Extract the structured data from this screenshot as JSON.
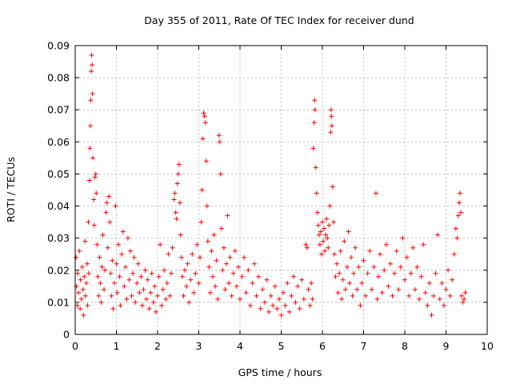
{
  "chart_data": {
    "type": "scatter",
    "title": "Day 355 of 2011, Rate Of TEC Index for receiver dund",
    "xlabel": "GPS time / hours",
    "ylabel": "ROTI / TECUs",
    "xlim": [
      0,
      10
    ],
    "ylim": [
      0,
      0.09
    ],
    "x_ticks": [
      0,
      1,
      2,
      3,
      4,
      5,
      6,
      7,
      8,
      9,
      10
    ],
    "y_ticks": [
      0,
      0.01,
      0.02,
      0.03,
      0.04,
      0.05,
      0.06,
      0.07,
      0.08,
      0.09
    ],
    "x_tick_labels": [
      "0",
      "1",
      "2",
      "3",
      "4",
      "5",
      "6",
      "7",
      "8",
      "9",
      "10"
    ],
    "y_tick_labels": [
      "0",
      "0.01",
      "0.02",
      "0.03",
      "0.04",
      "0.05",
      "0.06",
      "0.07",
      "0.08",
      "0.09"
    ],
    "grid": true,
    "marker": "plus",
    "color": "#ff0000",
    "series": [
      {
        "points": [
          [
            0.02,
            0.024
          ],
          [
            0.03,
            0.015
          ],
          [
            0.05,
            0.009
          ],
          [
            0.06,
            0.019
          ],
          [
            0.08,
            0.013
          ],
          [
            0.1,
            0.026
          ],
          [
            0.12,
            0.008
          ],
          [
            0.13,
            0.017
          ],
          [
            0.15,
            0.011
          ],
          [
            0.17,
            0.021
          ],
          [
            0.19,
            0.014
          ],
          [
            0.2,
            0.006
          ],
          [
            0.22,
            0.018
          ],
          [
            0.24,
            0.029
          ],
          [
            0.25,
            0.012
          ],
          [
            0.27,
            0.016
          ],
          [
            0.29,
            0.022
          ],
          [
            0.3,
            0.009
          ],
          [
            0.32,
            0.035
          ],
          [
            0.33,
            0.019
          ],
          [
            0.35,
            0.048
          ],
          [
            0.36,
            0.058
          ],
          [
            0.37,
            0.065
          ],
          [
            0.38,
            0.073
          ],
          [
            0.39,
            0.082
          ],
          [
            0.4,
            0.087
          ],
          [
            0.41,
            0.084
          ],
          [
            0.42,
            0.075
          ],
          [
            0.43,
            0.055
          ],
          [
            0.45,
            0.042
          ],
          [
            0.46,
            0.034
          ],
          [
            0.48,
            0.049
          ],
          [
            0.5,
            0.05
          ],
          [
            0.51,
            0.044
          ],
          [
            0.53,
            0.028
          ],
          [
            0.55,
            0.018
          ],
          [
            0.57,
            0.012
          ],
          [
            0.59,
            0.024
          ],
          [
            0.61,
            0.016
          ],
          [
            0.63,
            0.01
          ],
          [
            0.65,
            0.021
          ],
          [
            0.67,
            0.031
          ],
          [
            0.7,
            0.014
          ],
          [
            0.72,
            0.02
          ],
          [
            0.75,
            0.038
          ],
          [
            0.77,
            0.041
          ],
          [
            0.79,
            0.027
          ],
          [
            0.82,
            0.043
          ],
          [
            0.84,
            0.035
          ],
          [
            0.86,
            0.019
          ],
          [
            0.88,
            0.012
          ],
          [
            0.9,
            0.023
          ],
          [
            0.92,
            0.008
          ],
          [
            0.95,
            0.016
          ],
          [
            0.98,
            0.04
          ],
          [
            1.0,
            0.022
          ],
          [
            1.02,
            0.013
          ],
          [
            1.05,
            0.028
          ],
          [
            1.08,
            0.018
          ],
          [
            1.1,
            0.009
          ],
          [
            1.13,
            0.025
          ],
          [
            1.16,
            0.032
          ],
          [
            1.19,
            0.015
          ],
          [
            1.22,
            0.021
          ],
          [
            1.25,
            0.011
          ],
          [
            1.28,
            0.03
          ],
          [
            1.31,
            0.017
          ],
          [
            1.34,
            0.026
          ],
          [
            1.37,
            0.012
          ],
          [
            1.4,
            0.019
          ],
          [
            1.43,
            0.024
          ],
          [
            1.46,
            0.01
          ],
          [
            1.5,
            0.016
          ],
          [
            1.53,
            0.022
          ],
          [
            1.56,
            0.013
          ],
          [
            1.6,
            0.018
          ],
          [
            1.63,
            0.009
          ],
          [
            1.66,
            0.014
          ],
          [
            1.7,
            0.02
          ],
          [
            1.73,
            0.011
          ],
          [
            1.76,
            0.017
          ],
          [
            1.8,
            0.008
          ],
          [
            1.83,
            0.013
          ],
          [
            1.86,
            0.019
          ],
          [
            1.9,
            0.01
          ],
          [
            1.93,
            0.015
          ],
          [
            1.96,
            0.007
          ],
          [
            2.0,
            0.012
          ],
          [
            2.03,
            0.018
          ],
          [
            2.06,
            0.028
          ],
          [
            2.1,
            0.009
          ],
          [
            2.13,
            0.014
          ],
          [
            2.16,
            0.02
          ],
          [
            2.2,
            0.011
          ],
          [
            2.23,
            0.016
          ],
          [
            2.26,
            0.025
          ],
          [
            2.3,
            0.012
          ],
          [
            2.33,
            0.019
          ],
          [
            2.36,
            0.027
          ],
          [
            2.4,
            0.042
          ],
          [
            2.42,
            0.044
          ],
          [
            2.44,
            0.038
          ],
          [
            2.46,
            0.036
          ],
          [
            2.48,
            0.047
          ],
          [
            2.5,
            0.05
          ],
          [
            2.52,
            0.053
          ],
          [
            2.54,
            0.041
          ],
          [
            2.56,
            0.031
          ],
          [
            2.58,
            0.024
          ],
          [
            2.6,
            0.018
          ],
          [
            2.63,
            0.012
          ],
          [
            2.66,
            0.02
          ],
          [
            2.7,
            0.015
          ],
          [
            2.73,
            0.022
          ],
          [
            2.76,
            0.01
          ],
          [
            2.8,
            0.017
          ],
          [
            2.84,
            0.025
          ],
          [
            2.88,
            0.013
          ],
          [
            2.92,
            0.019
          ],
          [
            2.96,
            0.028
          ],
          [
            3.0,
            0.016
          ],
          [
            3.03,
            0.024
          ],
          [
            3.06,
            0.035
          ],
          [
            3.08,
            0.045
          ],
          [
            3.1,
            0.061
          ],
          [
            3.12,
            0.069
          ],
          [
            3.14,
            0.068
          ],
          [
            3.16,
            0.066
          ],
          [
            3.18,
            0.054
          ],
          [
            3.2,
            0.04
          ],
          [
            3.22,
            0.029
          ],
          [
            3.25,
            0.021
          ],
          [
            3.28,
            0.013
          ],
          [
            3.31,
            0.026
          ],
          [
            3.34,
            0.018
          ],
          [
            3.37,
            0.031
          ],
          [
            3.4,
            0.015
          ],
          [
            3.43,
            0.023
          ],
          [
            3.46,
            0.011
          ],
          [
            3.49,
            0.062
          ],
          [
            3.51,
            0.06
          ],
          [
            3.53,
            0.05
          ],
          [
            3.55,
            0.033
          ],
          [
            3.58,
            0.02
          ],
          [
            3.61,
            0.027
          ],
          [
            3.64,
            0.014
          ],
          [
            3.67,
            0.022
          ],
          [
            3.7,
            0.037
          ],
          [
            3.73,
            0.016
          ],
          [
            3.76,
            0.024
          ],
          [
            3.8,
            0.012
          ],
          [
            3.84,
            0.019
          ],
          [
            3.88,
            0.026
          ],
          [
            3.92,
            0.015
          ],
          [
            3.96,
            0.021
          ],
          [
            4.0,
            0.011
          ],
          [
            4.05,
            0.018
          ],
          [
            4.1,
            0.024
          ],
          [
            4.15,
            0.013
          ],
          [
            4.2,
            0.02
          ],
          [
            4.25,
            0.009
          ],
          [
            4.3,
            0.016
          ],
          [
            4.35,
            0.022
          ],
          [
            4.4,
            0.012
          ],
          [
            4.45,
            0.018
          ],
          [
            4.5,
            0.008
          ],
          [
            4.55,
            0.014
          ],
          [
            4.6,
            0.01
          ],
          [
            4.65,
            0.017
          ],
          [
            4.7,
            0.007
          ],
          [
            4.75,
            0.012
          ],
          [
            4.8,
            0.009
          ],
          [
            4.85,
            0.015
          ],
          [
            4.9,
            0.008
          ],
          [
            4.95,
            0.011
          ],
          [
            5.0,
            0.006
          ],
          [
            5.05,
            0.013
          ],
          [
            5.1,
            0.009
          ],
          [
            5.15,
            0.016
          ],
          [
            5.2,
            0.007
          ],
          [
            5.25,
            0.012
          ],
          [
            5.3,
            0.018
          ],
          [
            5.35,
            0.01
          ],
          [
            5.4,
            0.015
          ],
          [
            5.45,
            0.008
          ],
          [
            5.5,
            0.017
          ],
          [
            5.55,
            0.011
          ],
          [
            5.6,
            0.028
          ],
          [
            5.63,
            0.027
          ],
          [
            5.66,
            0.014
          ],
          [
            5.7,
            0.009
          ],
          [
            5.73,
            0.016
          ],
          [
            5.76,
            0.011
          ],
          [
            5.78,
            0.058
          ],
          [
            5.8,
            0.066
          ],
          [
            5.81,
            0.073
          ],
          [
            5.82,
            0.07
          ],
          [
            5.84,
            0.052
          ],
          [
            5.86,
            0.044
          ],
          [
            5.88,
            0.038
          ],
          [
            5.9,
            0.034
          ],
          [
            5.92,
            0.031
          ],
          [
            5.94,
            0.028
          ],
          [
            5.96,
            0.032
          ],
          [
            5.98,
            0.025
          ],
          [
            6.0,
            0.035
          ],
          [
            6.02,
            0.029
          ],
          [
            6.04,
            0.033
          ],
          [
            6.06,
            0.026
          ],
          [
            6.08,
            0.031
          ],
          [
            6.1,
            0.036
          ],
          [
            6.12,
            0.03
          ],
          [
            6.14,
            0.027
          ],
          [
            6.16,
            0.034
          ],
          [
            6.18,
            0.04
          ],
          [
            6.2,
            0.063
          ],
          [
            6.21,
            0.07
          ],
          [
            6.22,
            0.068
          ],
          [
            6.23,
            0.065
          ],
          [
            6.25,
            0.046
          ],
          [
            6.27,
            0.035
          ],
          [
            6.29,
            0.025
          ],
          [
            6.32,
            0.018
          ],
          [
            6.35,
            0.022
          ],
          [
            6.38,
            0.013
          ],
          [
            6.41,
            0.019
          ],
          [
            6.44,
            0.026
          ],
          [
            6.47,
            0.011
          ],
          [
            6.5,
            0.017
          ],
          [
            6.53,
            0.029
          ],
          [
            6.56,
            0.014
          ],
          [
            6.6,
            0.021
          ],
          [
            6.63,
            0.032
          ],
          [
            6.66,
            0.016
          ],
          [
            6.7,
            0.024
          ],
          [
            6.73,
            0.012
          ],
          [
            6.76,
            0.019
          ],
          [
            6.8,
            0.027
          ],
          [
            6.84,
            0.014
          ],
          [
            6.88,
            0.021
          ],
          [
            6.92,
            0.009
          ],
          [
            6.96,
            0.016
          ],
          [
            7.0,
            0.023
          ],
          [
            7.05,
            0.012
          ],
          [
            7.1,
            0.019
          ],
          [
            7.15,
            0.026
          ],
          [
            7.2,
            0.014
          ],
          [
            7.25,
            0.021
          ],
          [
            7.3,
            0.044
          ],
          [
            7.33,
            0.011
          ],
          [
            7.36,
            0.018
          ],
          [
            7.4,
            0.025
          ],
          [
            7.45,
            0.013
          ],
          [
            7.5,
            0.02
          ],
          [
            7.55,
            0.028
          ],
          [
            7.6,
            0.015
          ],
          [
            7.65,
            0.022
          ],
          [
            7.7,
            0.012
          ],
          [
            7.75,
            0.019
          ],
          [
            7.8,
            0.026
          ],
          [
            7.85,
            0.014
          ],
          [
            7.9,
            0.021
          ],
          [
            7.95,
            0.03
          ],
          [
            8.0,
            0.017
          ],
          [
            8.05,
            0.024
          ],
          [
            8.1,
            0.012
          ],
          [
            8.15,
            0.019
          ],
          [
            8.2,
            0.027
          ],
          [
            8.25,
            0.014
          ],
          [
            8.3,
            0.021
          ],
          [
            8.35,
            0.011
          ],
          [
            8.4,
            0.018
          ],
          [
            8.45,
            0.028
          ],
          [
            8.5,
            0.013
          ],
          [
            8.55,
            0.009
          ],
          [
            8.6,
            0.016
          ],
          [
            8.65,
            0.006
          ],
          [
            8.7,
            0.012
          ],
          [
            8.75,
            0.019
          ],
          [
            8.8,
            0.031
          ],
          [
            8.85,
            0.011
          ],
          [
            8.9,
            0.016
          ],
          [
            8.95,
            0.009
          ],
          [
            9.0,
            0.014
          ],
          [
            9.05,
            0.02
          ],
          [
            9.1,
            0.012
          ],
          [
            9.15,
            0.017
          ],
          [
            9.2,
            0.025
          ],
          [
            9.24,
            0.033
          ],
          [
            9.27,
            0.03
          ],
          [
            9.3,
            0.037
          ],
          [
            9.32,
            0.041
          ],
          [
            9.34,
            0.044
          ],
          [
            9.36,
            0.038
          ],
          [
            9.38,
            0.012
          ],
          [
            9.41,
            0.01
          ],
          [
            9.44,
            0.011
          ],
          [
            9.47,
            0.013
          ]
        ]
      }
    ]
  }
}
